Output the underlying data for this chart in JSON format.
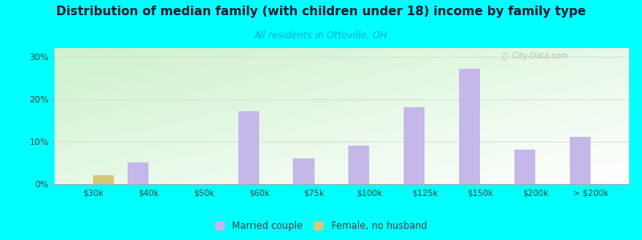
{
  "title": "Distribution of median family (with children under 18) income by family type",
  "subtitle": "All residents in Ottoville, OH",
  "title_color": "#1a1a2e",
  "subtitle_color": "#00aacc",
  "background_color": "#00ffff",
  "categories": [
    "$30k",
    "$40k",
    "$50k",
    "$60k",
    "$75k",
    "$100k",
    "$125k",
    "$150k",
    "$200k",
    "> $200k"
  ],
  "married_couple": [
    0,
    5,
    0,
    17,
    6,
    9,
    18,
    27,
    8,
    11
  ],
  "female_no_husband": [
    2,
    0,
    0,
    0,
    0,
    0,
    0,
    0,
    0,
    0
  ],
  "married_color": "#c5b8e8",
  "female_color": "#d4c97a",
  "bar_width": 0.38,
  "ylim": [
    0,
    32
  ],
  "yticks": [
    0,
    10,
    20,
    30
  ],
  "ytick_labels": [
    "0%",
    "10%",
    "20%",
    "30%"
  ],
  "grid_color": "#dddddd",
  "legend_married": "Married couple",
  "legend_female": "Female, no husband",
  "watermark": "ⓘ  City-Data.com"
}
